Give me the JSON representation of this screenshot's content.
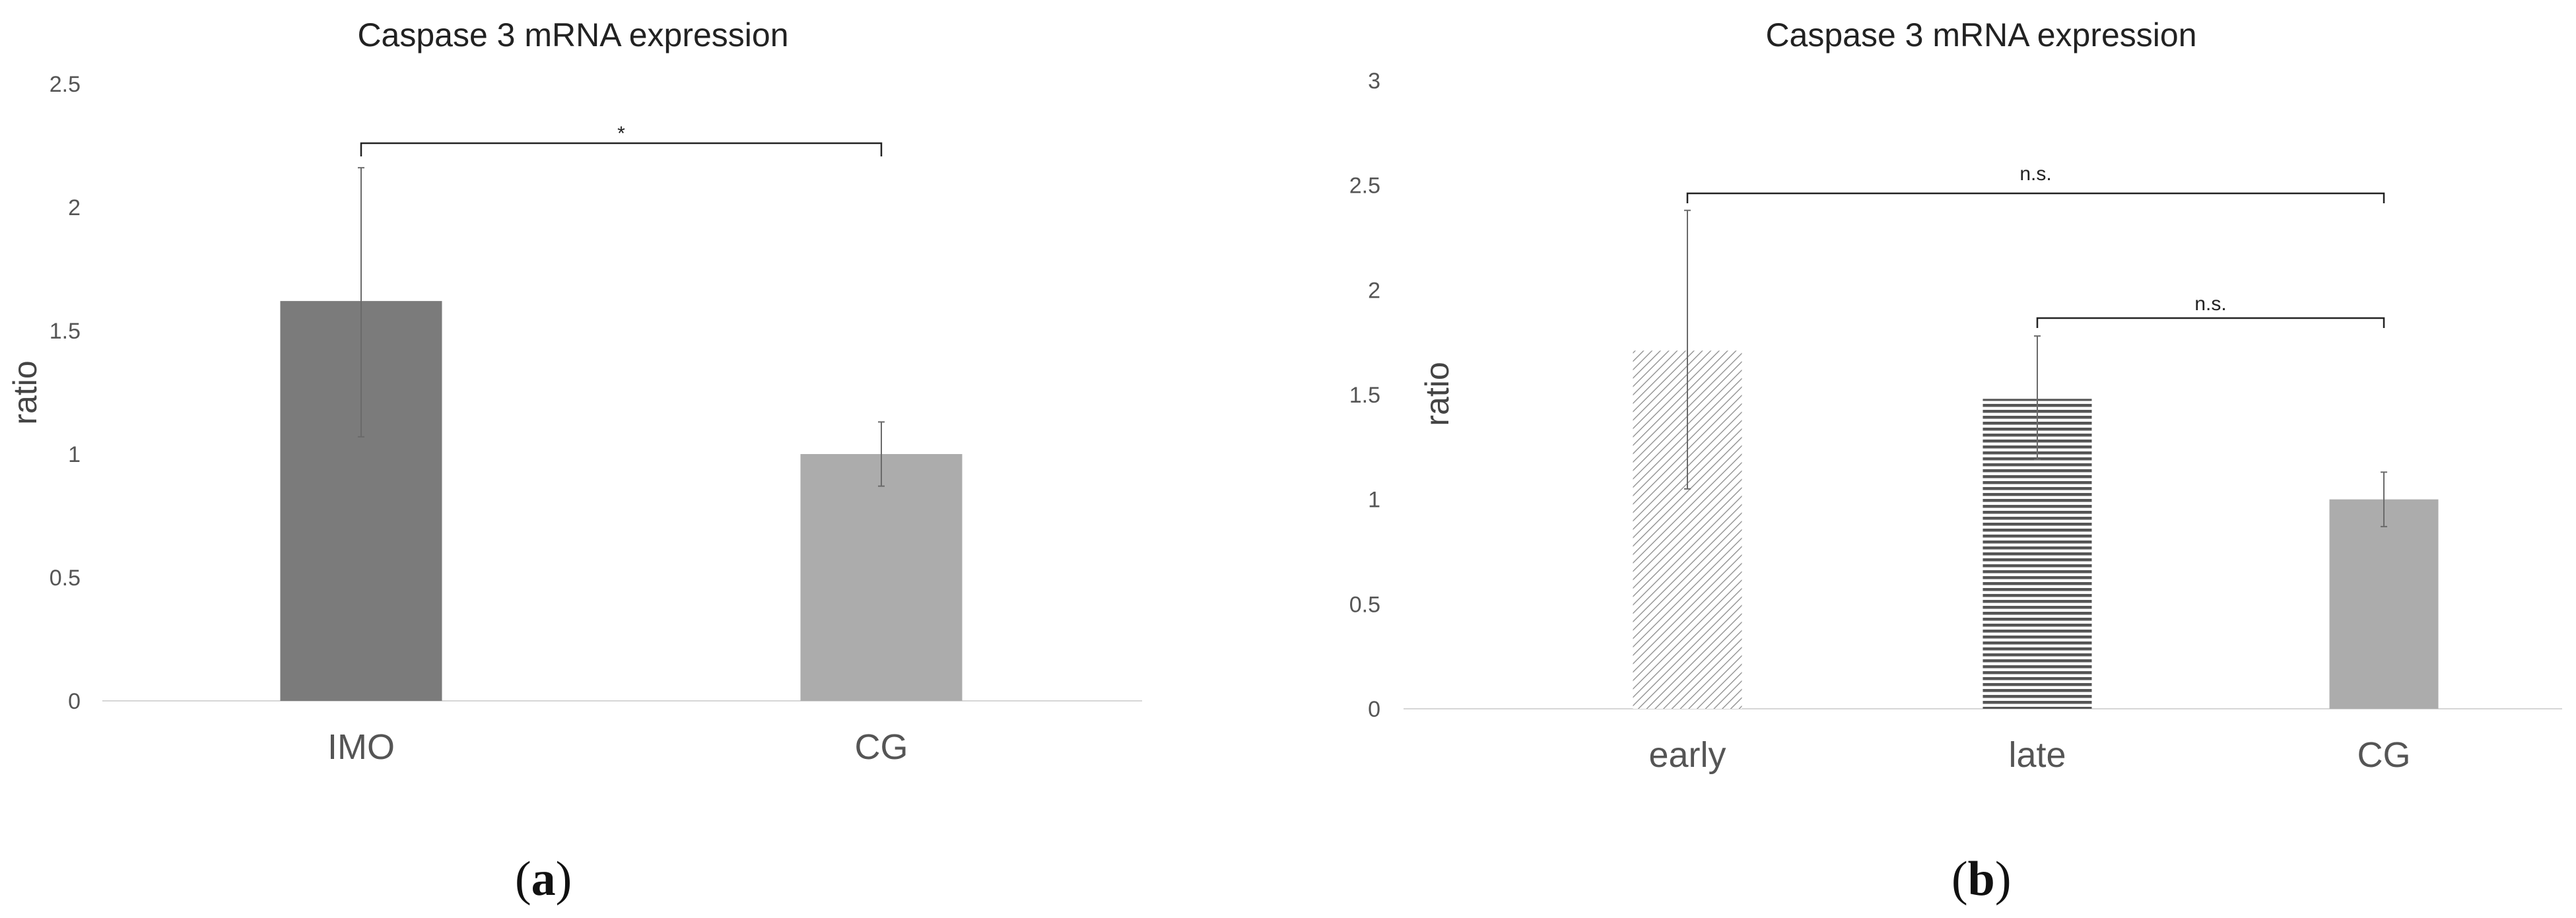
{
  "chart_data": [
    {
      "type": "bar",
      "panel_label": "a",
      "title": "Caspase 3 mRNA expression",
      "xlabel": "",
      "ylabel": "ratio",
      "ylim": [
        0,
        2.5
      ],
      "yticks": [
        "0",
        "0.5",
        "1",
        "1.5",
        "2",
        "2.5"
      ],
      "grid": false,
      "categories": [
        "IMO",
        "CG"
      ],
      "values": [
        1.62,
        1.0
      ],
      "error_bars": [
        {
          "low": 1.07,
          "high": 2.16
        },
        {
          "low": 0.87,
          "high": 1.13
        }
      ],
      "bar_fills": [
        "#7b7b7b",
        "#acacac"
      ],
      "bar_patterns": [
        "solid",
        "solid"
      ],
      "significance": [
        {
          "from": "IMO",
          "to": "CG",
          "label": "*"
        }
      ]
    },
    {
      "type": "bar",
      "panel_label": "b",
      "title": "Caspase 3 mRNA expression",
      "xlabel": "",
      "ylabel": "ratio",
      "ylim": [
        0,
        3
      ],
      "yticks": [
        "0",
        "0.5",
        "1",
        "1.5",
        "2",
        "2.5",
        "3"
      ],
      "grid": false,
      "categories": [
        "early",
        "late",
        "CG"
      ],
      "values": [
        1.71,
        1.48,
        1.0
      ],
      "error_bars": [
        {
          "low": 1.05,
          "high": 2.38
        },
        {
          "low": 1.19,
          "high": 1.78
        },
        {
          "low": 0.87,
          "high": 1.13
        }
      ],
      "bar_fills": [
        "#8a8a8a",
        "#555555",
        "#acacac"
      ],
      "bar_patterns": [
        "diagonal-hatch",
        "horizontal-lines",
        "solid"
      ],
      "significance": [
        {
          "from": "early",
          "to": "CG",
          "label": "n.s."
        },
        {
          "from": "late",
          "to": "CG",
          "label": "n.s."
        }
      ]
    }
  ]
}
